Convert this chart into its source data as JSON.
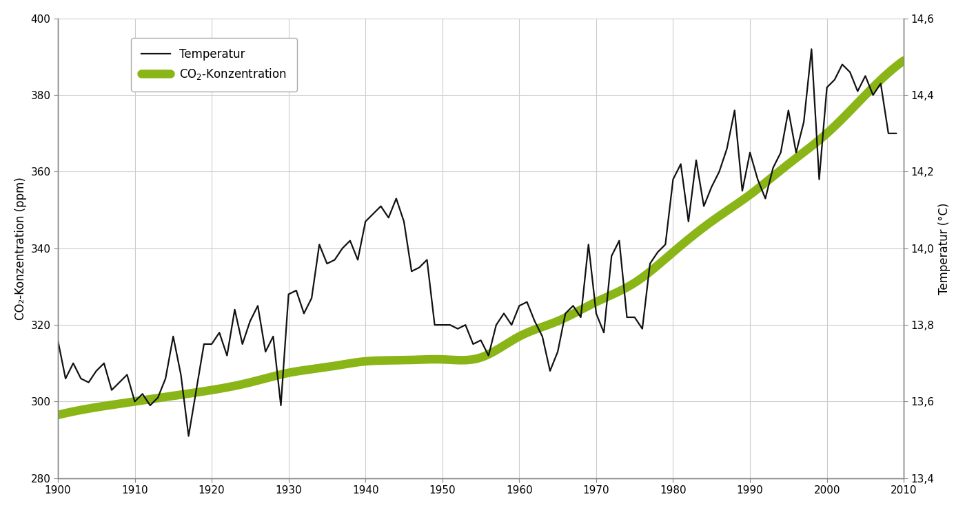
{
  "ylabel_left": "CO₂-Konzentration (ppm)",
  "ylabel_right": "Temperatur (°C)",
  "ylim_left": [
    280,
    400
  ],
  "ylim_right": [
    13.4,
    14.6
  ],
  "xlim": [
    1900,
    2010
  ],
  "yticks_left": [
    280,
    300,
    320,
    340,
    360,
    380,
    400
  ],
  "yticks_right": [
    13.4,
    13.6,
    13.8,
    14.0,
    14.2,
    14.4,
    14.6
  ],
  "xticks": [
    1900,
    1910,
    1920,
    1930,
    1940,
    1950,
    1960,
    1970,
    1980,
    1990,
    2000,
    2010
  ],
  "co2_color": "#8ab516",
  "temp_color": "#111111",
  "background_color": "#ffffff",
  "grid_color": "#cccccc",
  "co2_linewidth": 9,
  "temp_linewidth": 1.6,
  "temp_years": [
    1900,
    1901,
    1902,
    1903,
    1904,
    1905,
    1906,
    1907,
    1908,
    1909,
    1910,
    1911,
    1912,
    1913,
    1914,
    1915,
    1916,
    1917,
    1918,
    1919,
    1920,
    1921,
    1922,
    1923,
    1924,
    1925,
    1926,
    1927,
    1928,
    1929,
    1930,
    1931,
    1932,
    1933,
    1934,
    1935,
    1936,
    1937,
    1938,
    1939,
    1940,
    1941,
    1942,
    1943,
    1944,
    1945,
    1946,
    1947,
    1948,
    1949,
    1950,
    1951,
    1952,
    1953,
    1954,
    1955,
    1956,
    1957,
    1958,
    1959,
    1960,
    1961,
    1962,
    1963,
    1964,
    1965,
    1966,
    1967,
    1968,
    1969,
    1970,
    1971,
    1972,
    1973,
    1974,
    1975,
    1976,
    1977,
    1978,
    1979,
    1980,
    1981,
    1982,
    1983,
    1984,
    1985,
    1986,
    1987,
    1988,
    1989,
    1990,
    1991,
    1992,
    1993,
    1994,
    1995,
    1996,
    1997,
    1998,
    1999,
    2000,
    2001,
    2002,
    2003,
    2004,
    2005,
    2006,
    2007,
    2008,
    2009
  ],
  "temp_values": [
    316,
    306,
    310,
    306,
    305,
    308,
    310,
    303,
    305,
    307,
    300,
    302,
    299,
    301,
    306,
    317,
    307,
    291,
    303,
    315,
    315,
    318,
    312,
    324,
    315,
    321,
    325,
    313,
    317,
    299,
    328,
    329,
    323,
    327,
    341,
    336,
    337,
    340,
    342,
    337,
    347,
    349,
    351,
    348,
    353,
    347,
    334,
    335,
    337,
    320,
    320,
    320,
    319,
    320,
    315,
    316,
    312,
    320,
    323,
    320,
    325,
    326,
    321,
    317,
    308,
    313,
    323,
    325,
    322,
    341,
    323,
    318,
    338,
    342,
    322,
    322,
    319,
    336,
    339,
    341,
    358,
    362,
    347,
    363,
    351,
    356,
    360,
    366,
    376,
    355,
    365,
    358,
    353,
    361,
    365,
    376,
    365,
    373,
    392,
    358,
    382,
    384,
    388,
    386,
    381,
    385,
    380,
    383,
    370,
    370
  ],
  "co2_years": [
    1900,
    1905,
    1910,
    1915,
    1920,
    1925,
    1930,
    1935,
    1940,
    1945,
    1950,
    1955,
    1960,
    1965,
    1970,
    1975,
    1980,
    1985,
    1990,
    1995,
    2000,
    2005,
    2010
  ],
  "co2_values": [
    296.5,
    298.5,
    300.0,
    301.5,
    303.0,
    305.0,
    307.5,
    309.0,
    310.5,
    310.8,
    311.0,
    311.5,
    317.0,
    321.0,
    326.0,
    331.0,
    339.0,
    347.0,
    354.0,
    362.0,
    370.0,
    380.0,
    389.0
  ]
}
